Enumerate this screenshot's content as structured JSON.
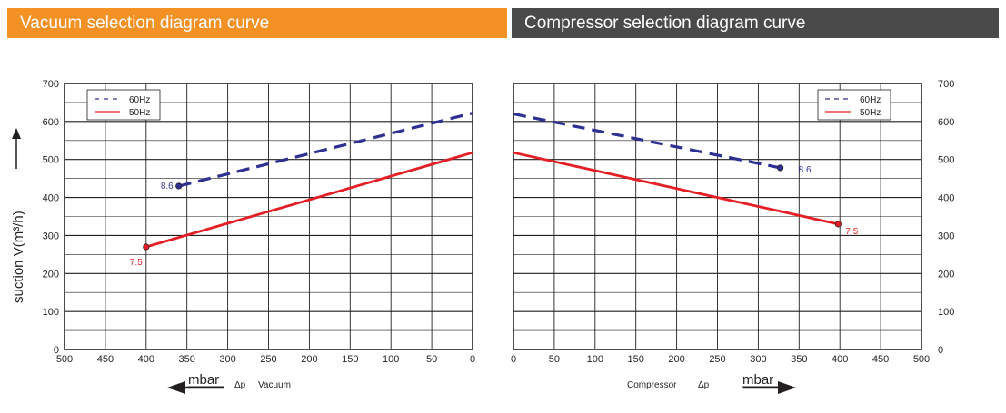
{
  "banners": {
    "left": {
      "title": "Vacuum  selection  diagram  curve",
      "color": "#f39125"
    },
    "right": {
      "title": "Compressor  selection diagram curve",
      "color": "#4a4a4a"
    }
  },
  "y_axis_title": "suction V(m³/h)",
  "colors": {
    "series_60hz": "#2e3192",
    "series_50hz": "#e31e24",
    "grid": "#231f20"
  },
  "chart_data": [
    {
      "type": "line",
      "ylim": [
        0,
        700
      ],
      "yticks": [
        0,
        100,
        200,
        300,
        400,
        500,
        600,
        700
      ],
      "xlim": [
        500,
        0
      ],
      "xticks": [
        500,
        450,
        400,
        350,
        300,
        250,
        200,
        150,
        100,
        50,
        0
      ],
      "x_reversed": true,
      "bottom_label": {
        "unit": "mbar",
        "symbol": "Δp",
        "text": "Vacuum",
        "arrow": "left"
      },
      "legend": {
        "position": "top-left",
        "entries": [
          "60Hz",
          "50Hz"
        ]
      },
      "series": [
        {
          "name": "60Hz",
          "style": "dashed",
          "color": "#2e3192",
          "points": [
            [
              360,
              430
            ],
            [
              0,
              622
            ]
          ],
          "end_label": "8.6"
        },
        {
          "name": "50Hz",
          "style": "solid",
          "color": "#e31e24",
          "points": [
            [
              400,
              270
            ],
            [
              0,
              518
            ]
          ],
          "end_label": "7.5"
        }
      ]
    },
    {
      "type": "line",
      "ylim": [
        0,
        700
      ],
      "yticks": [
        0,
        100,
        200,
        300,
        400,
        500,
        600,
        700
      ],
      "xlim": [
        0,
        500
      ],
      "xticks": [
        0,
        50,
        100,
        150,
        200,
        250,
        300,
        350,
        400,
        450,
        500
      ],
      "x_reversed": false,
      "bottom_label": {
        "text": "Compressor",
        "symbol": "Δp",
        "unit": "mbar",
        "arrow": "right"
      },
      "legend": {
        "position": "top-right",
        "entries": [
          "60Hz",
          "50Hz"
        ]
      },
      "series": [
        {
          "name": "60Hz",
          "style": "dashed",
          "color": "#2e3192",
          "points": [
            [
              0,
              620
            ],
            [
              327,
              478
            ]
          ],
          "end_label": "8.6"
        },
        {
          "name": "50Hz",
          "style": "solid",
          "color": "#e31e24",
          "points": [
            [
              0,
              518
            ],
            [
              398,
              330
            ]
          ],
          "end_label": "7.5"
        }
      ]
    }
  ]
}
